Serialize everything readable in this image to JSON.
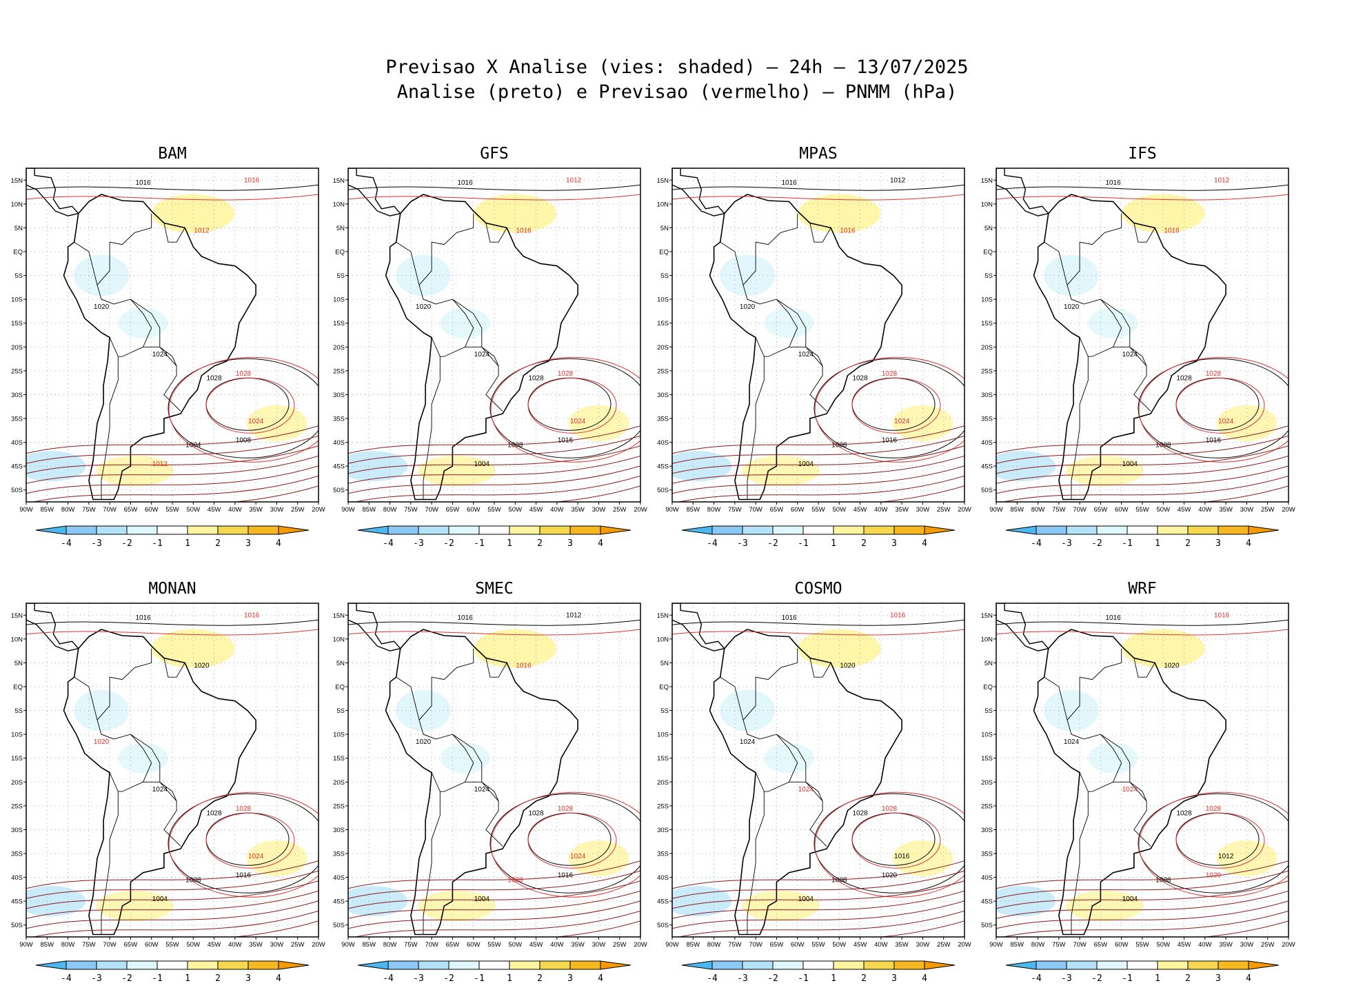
{
  "title": {
    "line1": "Previsao X Analise (vies: shaded) — 24h — 13/07/2025",
    "line2": "Analise (preto) e Previsao (vermelho) — PNMM (hPa)"
  },
  "axes": {
    "lat_labels": [
      "15N",
      "10N",
      "5N",
      "EQ",
      "5S",
      "10S",
      "15S",
      "20S",
      "25S",
      "30S",
      "35S",
      "40S",
      "45S",
      "50S"
    ],
    "lon_labels": [
      "90W",
      "85W",
      "80W",
      "75W",
      "70W",
      "65W",
      "60W",
      "55W",
      "50W",
      "45W",
      "40W",
      "35W",
      "30W",
      "25W",
      "20W"
    ]
  },
  "colorbar": {
    "labels": [
      "-4",
      "-3",
      "-2",
      "-1",
      "1",
      "2",
      "3",
      "4"
    ],
    "colors": [
      "#4db8f0",
      "#8cc8f5",
      "#b4e2f8",
      "#dff6fb",
      "#ffffff",
      "#fff5a0",
      "#f5d850",
      "#f5b820",
      "#f59a00"
    ]
  },
  "legend_colors": {
    "analysis": "#000000",
    "forecast": "#e03030"
  },
  "panels": [
    {
      "model": "BAM",
      "isobars": [
        {
          "v": "1016",
          "c": "k"
        },
        {
          "v": "1016",
          "c": "r"
        },
        {
          "v": "1012",
          "c": "r"
        },
        {
          "v": "1020",
          "c": "k"
        },
        {
          "v": "1024",
          "c": "k"
        },
        {
          "v": "1028",
          "c": "k"
        },
        {
          "v": "1028",
          "c": "r"
        },
        {
          "v": "1024",
          "c": "r"
        },
        {
          "v": "1008",
          "c": "k"
        },
        {
          "v": "1004",
          "c": "k"
        },
        {
          "v": "1012",
          "c": "r"
        }
      ]
    },
    {
      "model": "GFS",
      "isobars": [
        {
          "v": "1016",
          "c": "k"
        },
        {
          "v": "1012",
          "c": "r"
        },
        {
          "v": "1016",
          "c": "r"
        },
        {
          "v": "1020",
          "c": "k"
        },
        {
          "v": "1024",
          "c": "k"
        },
        {
          "v": "1028",
          "c": "k"
        },
        {
          "v": "1028",
          "c": "r"
        },
        {
          "v": "1024",
          "c": "r"
        },
        {
          "v": "1016",
          "c": "k"
        },
        {
          "v": "1008",
          "c": "k"
        },
        {
          "v": "1004",
          "c": "k"
        }
      ]
    },
    {
      "model": "MPAS",
      "isobars": [
        {
          "v": "1016",
          "c": "k"
        },
        {
          "v": "1012",
          "c": "k"
        },
        {
          "v": "1016",
          "c": "r"
        },
        {
          "v": "1020",
          "c": "k"
        },
        {
          "v": "1024",
          "c": "k"
        },
        {
          "v": "1028",
          "c": "k"
        },
        {
          "v": "1028",
          "c": "r"
        },
        {
          "v": "1024",
          "c": "r"
        },
        {
          "v": "1016",
          "c": "k"
        },
        {
          "v": "1008",
          "c": "k"
        },
        {
          "v": "1004",
          "c": "k"
        }
      ]
    },
    {
      "model": "IFS",
      "isobars": [
        {
          "v": "1016",
          "c": "k"
        },
        {
          "v": "1012",
          "c": "r"
        },
        {
          "v": "1016",
          "c": "r"
        },
        {
          "v": "1020",
          "c": "k"
        },
        {
          "v": "1024",
          "c": "k"
        },
        {
          "v": "1028",
          "c": "k"
        },
        {
          "v": "1028",
          "c": "r"
        },
        {
          "v": "1024",
          "c": "r"
        },
        {
          "v": "1016",
          "c": "k"
        },
        {
          "v": "1008",
          "c": "k"
        },
        {
          "v": "1004",
          "c": "k"
        }
      ]
    },
    {
      "model": "MONAN",
      "isobars": [
        {
          "v": "1016",
          "c": "k"
        },
        {
          "v": "1016",
          "c": "r"
        },
        {
          "v": "1020",
          "c": "k"
        },
        {
          "v": "1020",
          "c": "r"
        },
        {
          "v": "1024",
          "c": "k"
        },
        {
          "v": "1028",
          "c": "k"
        },
        {
          "v": "1028",
          "c": "r"
        },
        {
          "v": "1024",
          "c": "r"
        },
        {
          "v": "1016",
          "c": "k"
        },
        {
          "v": "1008",
          "c": "k"
        },
        {
          "v": "1004",
          "c": "k"
        }
      ]
    },
    {
      "model": "SMEC",
      "isobars": [
        {
          "v": "1016",
          "c": "k"
        },
        {
          "v": "1012",
          "c": "k"
        },
        {
          "v": "1016",
          "c": "r"
        },
        {
          "v": "1020",
          "c": "k"
        },
        {
          "v": "1024",
          "c": "k"
        },
        {
          "v": "1028",
          "c": "k"
        },
        {
          "v": "1028",
          "c": "r"
        },
        {
          "v": "1024",
          "c": "r"
        },
        {
          "v": "1016",
          "c": "k"
        },
        {
          "v": "1008",
          "c": "r"
        },
        {
          "v": "1004",
          "c": "k"
        }
      ]
    },
    {
      "model": "COSMO",
      "isobars": [
        {
          "v": "1016",
          "c": "k"
        },
        {
          "v": "1016",
          "c": "r"
        },
        {
          "v": "1020",
          "c": "k"
        },
        {
          "v": "1024",
          "c": "k"
        },
        {
          "v": "1024",
          "c": "r"
        },
        {
          "v": "1028",
          "c": "k"
        },
        {
          "v": "1028",
          "c": "r"
        },
        {
          "v": "1016",
          "c": "k"
        },
        {
          "v": "1020",
          "c": "k"
        },
        {
          "v": "1008",
          "c": "k"
        },
        {
          "v": "1004",
          "c": "k"
        }
      ]
    },
    {
      "model": "WRF",
      "isobars": [
        {
          "v": "1016",
          "c": "k"
        },
        {
          "v": "1016",
          "c": "r"
        },
        {
          "v": "1020",
          "c": "k"
        },
        {
          "v": "1024",
          "c": "k"
        },
        {
          "v": "1024",
          "c": "r"
        },
        {
          "v": "1028",
          "c": "k"
        },
        {
          "v": "1028",
          "c": "r"
        },
        {
          "v": "1012",
          "c": "k"
        },
        {
          "v": "1020",
          "c": "r"
        },
        {
          "v": "1008",
          "c": "k"
        },
        {
          "v": "1004",
          "c": "k"
        }
      ]
    }
  ]
}
